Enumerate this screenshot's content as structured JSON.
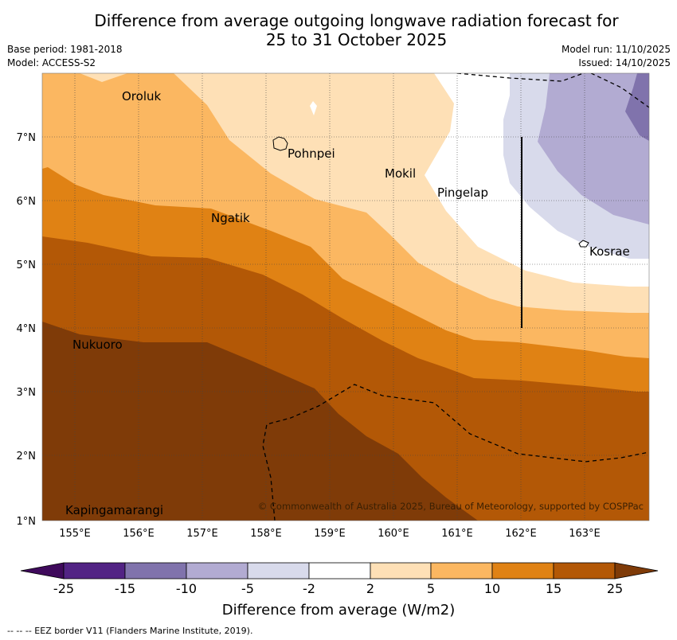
{
  "header": {
    "title_line1": "Difference from average outgoing longwave radiation forecast for",
    "title_line2": "25 to 31 October 2025",
    "base_period": "Base period: 1981-2018",
    "model": "Model: ACCESS-S2",
    "model_run": "Model run: 11/10/2025",
    "issued": "Issued: 14/10/2025"
  },
  "map": {
    "lon_ticks": [
      "155°E",
      "156°E",
      "157°E",
      "158°E",
      "159°E",
      "160°E",
      "161°E",
      "162°E",
      "163°E"
    ],
    "lat_ticks": [
      "7°N",
      "6°N",
      "5°N",
      "4°N",
      "3°N",
      "2°N",
      "1°N"
    ],
    "places": {
      "oroluk": "Oroluk",
      "pohnpei": "Pohnpei",
      "mokil": "Mokil",
      "pingelap": "Pingelap",
      "ngatik": "Ngatik",
      "kosrae": "Kosrae",
      "nukuoro": "Nukuoro",
      "kapingamarangi": "Kapingamarangi"
    },
    "copyright": "© Commonwealth of Australia 2025, Bureau of Meteorology, supported by COSPPac"
  },
  "colorbar": {
    "label": "Difference from average (W/m2)",
    "ticks": [
      "-25",
      "-15",
      "-10",
      "-5",
      "-2",
      "2",
      "5",
      "10",
      "15",
      "25"
    ],
    "colors": {
      "lt_neg25": "#3f0a5c",
      "neg25_neg15": "#522384",
      "neg15_neg10": "#8073ac",
      "neg10_neg5": "#b2abd2",
      "neg5_neg2": "#d8daeb",
      "neg2_2": "#ffffff",
      "p2_5": "#fee0b6",
      "p5_10": "#fbb761",
      "p10_15": "#e08214",
      "p15_25": "#b35806",
      "gt_25": "#7f3b08"
    }
  },
  "footnote": "--  --  -- EEZ border V11 (Flanders Marine Institute, 2019)."
}
